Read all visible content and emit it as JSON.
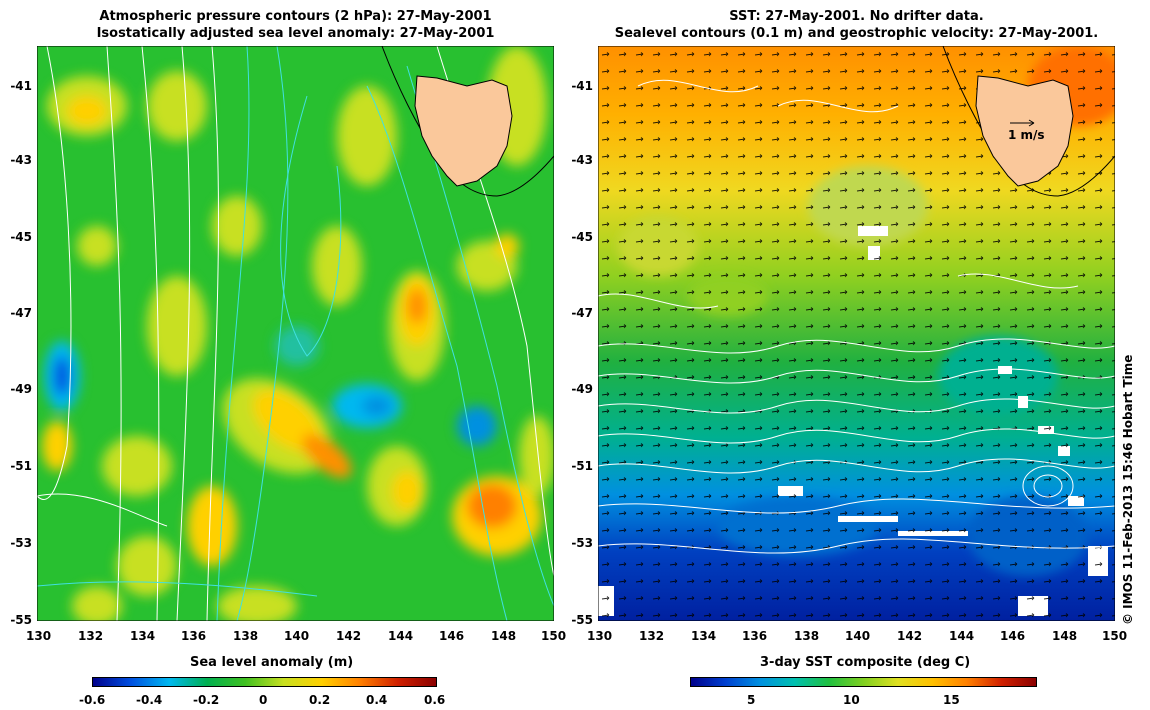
{
  "left_panel": {
    "title_line1": "Atmospheric pressure contours (2 hPa): 27-May-2001",
    "title_line2": "Isostatically adjusted sea level anomaly: 27-May-2001",
    "colorbar": {
      "title": "Sea level anomaly (m)",
      "ticks": [
        "-0.6",
        "-0.4",
        "-0.2",
        "0",
        "0.2",
        "0.4",
        "0.6"
      ],
      "colors": [
        "#00008b",
        "#0050e0",
        "#00b8f0",
        "#00b050",
        "#40c020",
        "#c8e020",
        "#ffd000",
        "#ff8000",
        "#d02000",
        "#8b0000"
      ]
    }
  },
  "right_panel": {
    "title_line1": "SST: 27-May-2001. No drifter data.",
    "title_line2": "Sealevel contours (0.1 m) and geostrophic velocity: 27-May-2001.",
    "velocity_scale_label": "1 m/s",
    "colorbar": {
      "title": "3-day SST composite (deg C)",
      "ticks": [
        "5",
        "10",
        "15"
      ],
      "colors": [
        "#00008b",
        "#0040d0",
        "#0090e0",
        "#00c0b0",
        "#20c040",
        "#80d020",
        "#e0e020",
        "#ffc000",
        "#ff8000",
        "#d02000",
        "#8b0000"
      ]
    }
  },
  "axes": {
    "lat_ticks": [
      "-41",
      "-43",
      "-45",
      "-47",
      "-49",
      "-51",
      "-53",
      "-55"
    ],
    "lon_ticks": [
      "130",
      "132",
      "134",
      "136",
      "138",
      "140",
      "142",
      "144",
      "146",
      "148",
      "150"
    ]
  },
  "credit": "© IMOS 11-Feb-2013 15:46 Hobart Time",
  "colors": {
    "land": "#fac89b",
    "pressure_contour": "#ffffff",
    "sealevel_contour": "#40e0e0",
    "field_base_left": "#28c030",
    "field_base_right": "#30b850"
  }
}
